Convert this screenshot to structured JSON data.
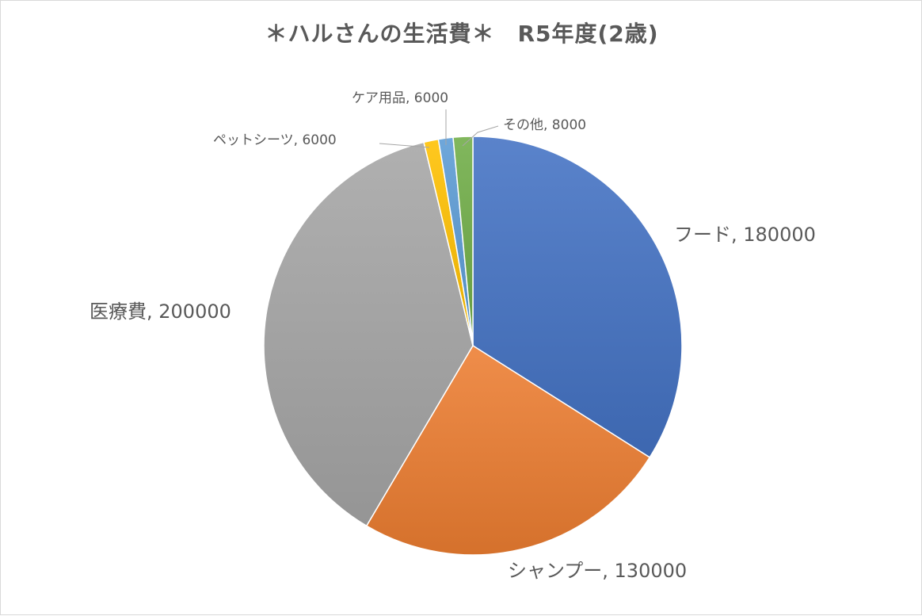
{
  "chart_data": {
    "type": "pie",
    "title": "＊ハルさんの生活費＊　R5年度(2歳)",
    "legend": "none",
    "slices": [
      {
        "label": "フード",
        "value": 180000,
        "color": "#4472c4",
        "label_text": "フード, 180000"
      },
      {
        "label": "シャンプー",
        "value": 130000,
        "color": "#ed7d31",
        "label_text": "シャンプー, 130000"
      },
      {
        "label": "医療費",
        "value": 200000,
        "color": "#a5a5a5",
        "label_text": "医療費, 200000"
      },
      {
        "label": "ペットシーツ",
        "value": 6000,
        "color": "#ffc000",
        "label_text": "ペットシーツ, 6000"
      },
      {
        "label": "ケア用品",
        "value": 6000,
        "color": "#5b9bd5",
        "label_text": "ケア用品, 6000"
      },
      {
        "label": "その他",
        "value": 8000,
        "color": "#70ad47",
        "label_text": "その他, 8000"
      }
    ]
  }
}
